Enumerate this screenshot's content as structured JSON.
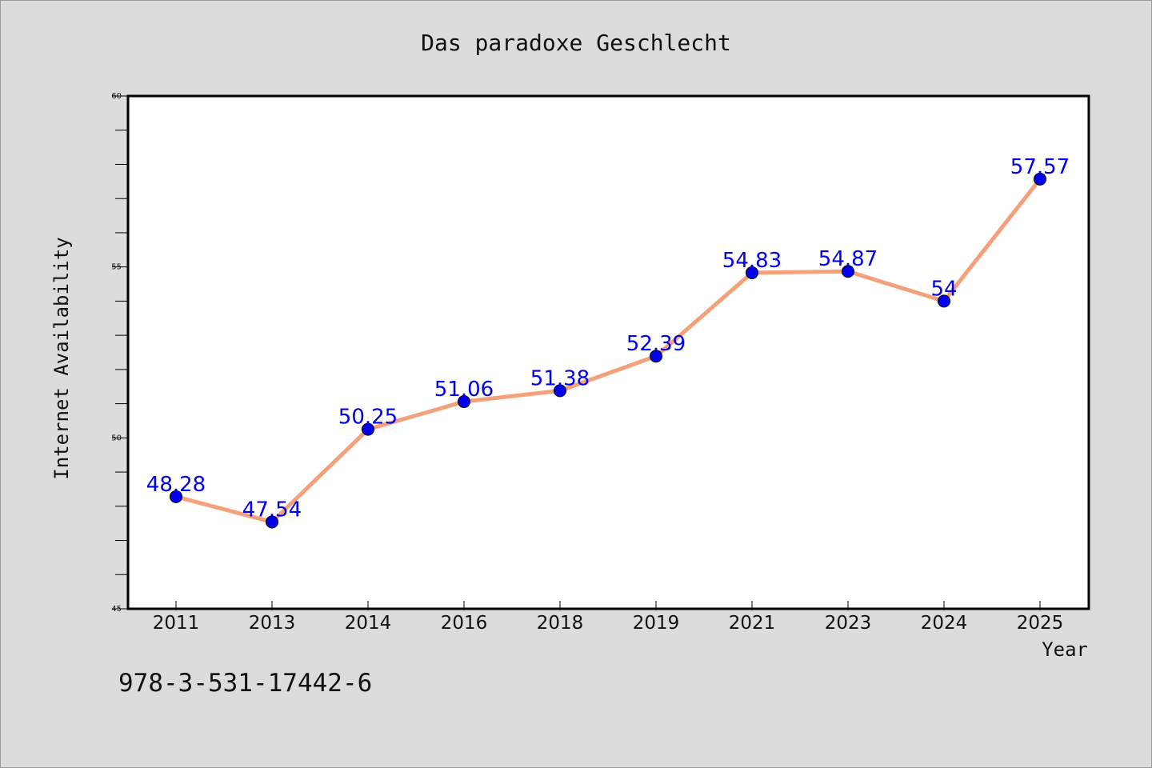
{
  "chart_data": {
    "type": "line",
    "title": "Das paradoxe Geschlecht",
    "xlabel": "Year",
    "ylabel": "Internet Availability",
    "categories": [
      "2011",
      "2013",
      "2014",
      "2016",
      "2018",
      "2019",
      "2021",
      "2023",
      "2024",
      "2025"
    ],
    "series": [
      {
        "values": [
          48.28,
          47.54,
          50.25,
          51.06,
          51.38,
          52.39,
          54.83,
          54.87,
          54,
          57.57
        ],
        "labels": [
          "48.28",
          "47.54",
          "50.25",
          "51.06",
          "51.38",
          "52.39",
          "54.83",
          "54.87",
          "54",
          "57.57"
        ],
        "line_color": "#f4a07a",
        "marker_color": "#0000ee",
        "label_color": "#0000ee"
      }
    ],
    "ylim": [
      45,
      60
    ],
    "yticks": [
      "45",
      "50",
      "55",
      "60"
    ],
    "grid": false,
    "legend": "none"
  },
  "footer": {
    "isbn": "978-3-531-17442-6"
  }
}
